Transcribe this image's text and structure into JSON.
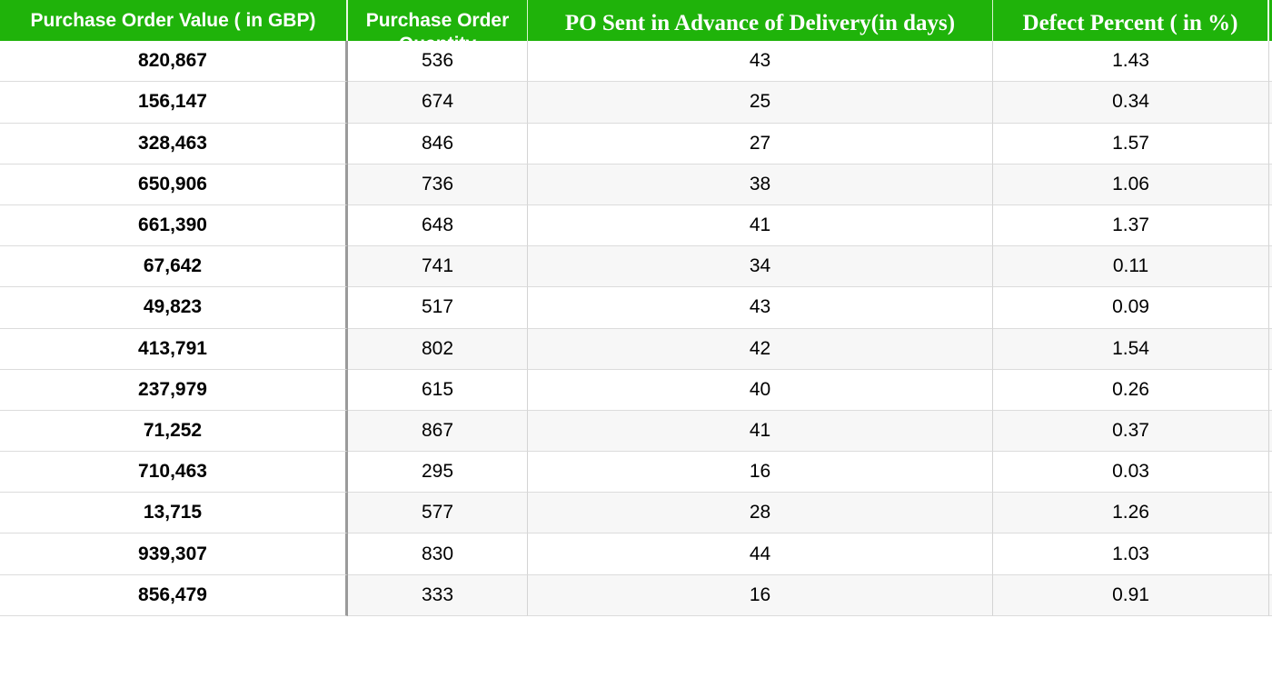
{
  "table": {
    "headers": [
      "Purchase Order Value ( in GBP)",
      "Purchase Order Quantity",
      "PO Sent in Advance of Delivery(in days)",
      "Defect Percent ( in %)"
    ],
    "rows": [
      [
        "820,867",
        "536",
        "43",
        "1.43"
      ],
      [
        "156,147",
        "674",
        "25",
        "0.34"
      ],
      [
        "328,463",
        "846",
        "27",
        "1.57"
      ],
      [
        "650,906",
        "736",
        "38",
        "1.06"
      ],
      [
        "661,390",
        "648",
        "41",
        "1.37"
      ],
      [
        "67,642",
        "741",
        "34",
        "0.11"
      ],
      [
        "49,823",
        "517",
        "43",
        "0.09"
      ],
      [
        "413,791",
        "802",
        "42",
        "1.54"
      ],
      [
        "237,979",
        "615",
        "40",
        "0.26"
      ],
      [
        "71,252",
        "867",
        "41",
        "0.37"
      ],
      [
        "710,463",
        "295",
        "16",
        "0.03"
      ],
      [
        "13,715",
        "577",
        "28",
        "1.26"
      ],
      [
        "939,307",
        "830",
        "44",
        "1.03"
      ],
      [
        "856,479",
        "333",
        "16",
        "0.91"
      ]
    ]
  },
  "colors": {
    "header_bg": "#1fb30a",
    "header_text": "#ffffff"
  }
}
